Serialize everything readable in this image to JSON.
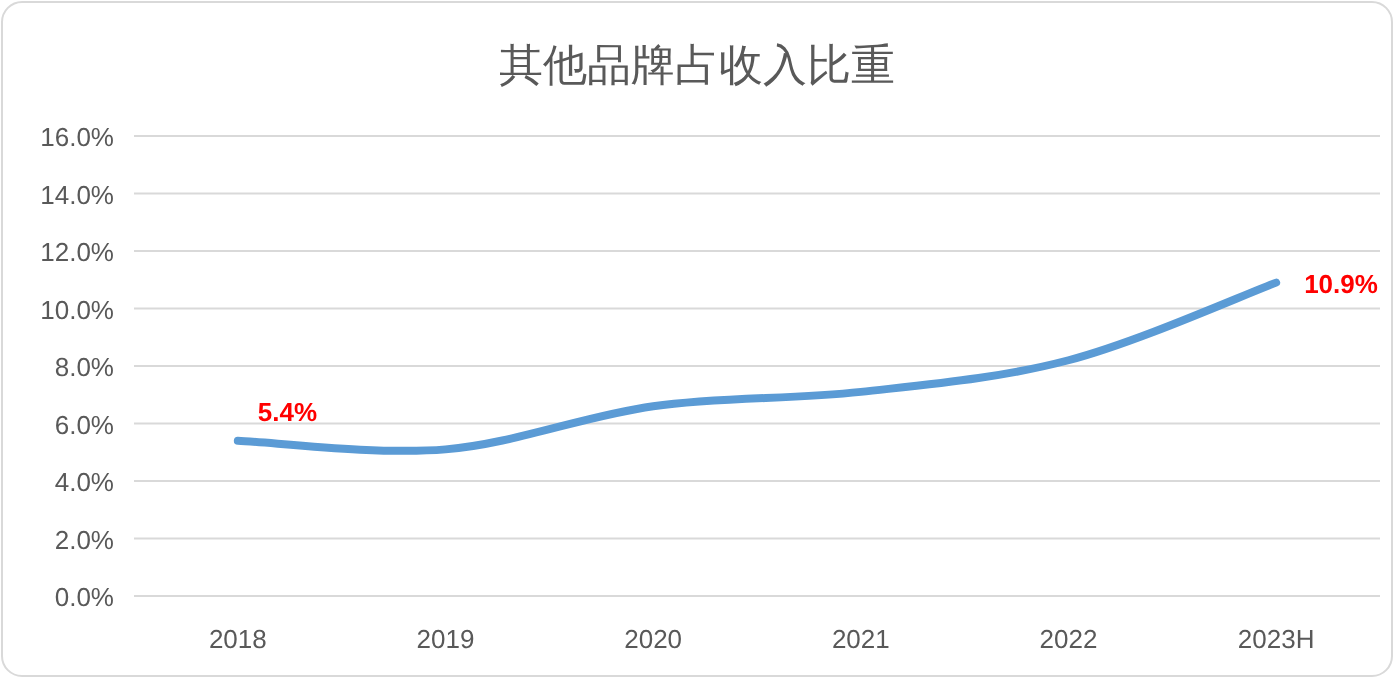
{
  "chart_data": {
    "type": "line",
    "title": "其他品牌占收入比重",
    "categories": [
      "2018",
      "2019",
      "2020",
      "2021",
      "2022",
      "2023H"
    ],
    "series": [
      {
        "color": "#5b9bd5",
        "values": [
          5.4,
          5.1,
          6.6,
          7.1,
          8.2,
          10.9
        ],
        "value_labels": [
          "5.4%",
          null,
          null,
          null,
          null,
          "10.9%"
        ]
      }
    ],
    "ylim": [
      0,
      16
    ],
    "yticks": [
      {
        "value": 0,
        "label": "0.0%"
      },
      {
        "value": 2,
        "label": "2.0%"
      },
      {
        "value": 4,
        "label": "4.0%"
      },
      {
        "value": 6,
        "label": "6.0%"
      },
      {
        "value": 8,
        "label": "8.0%"
      },
      {
        "value": 10,
        "label": "10.0%"
      },
      {
        "value": 12,
        "label": "12.0%"
      },
      {
        "value": 14,
        "label": "14.0%"
      },
      {
        "value": 16,
        "label": "16.0%"
      }
    ],
    "grid": "y",
    "marker": "none",
    "line_style": "solid"
  }
}
